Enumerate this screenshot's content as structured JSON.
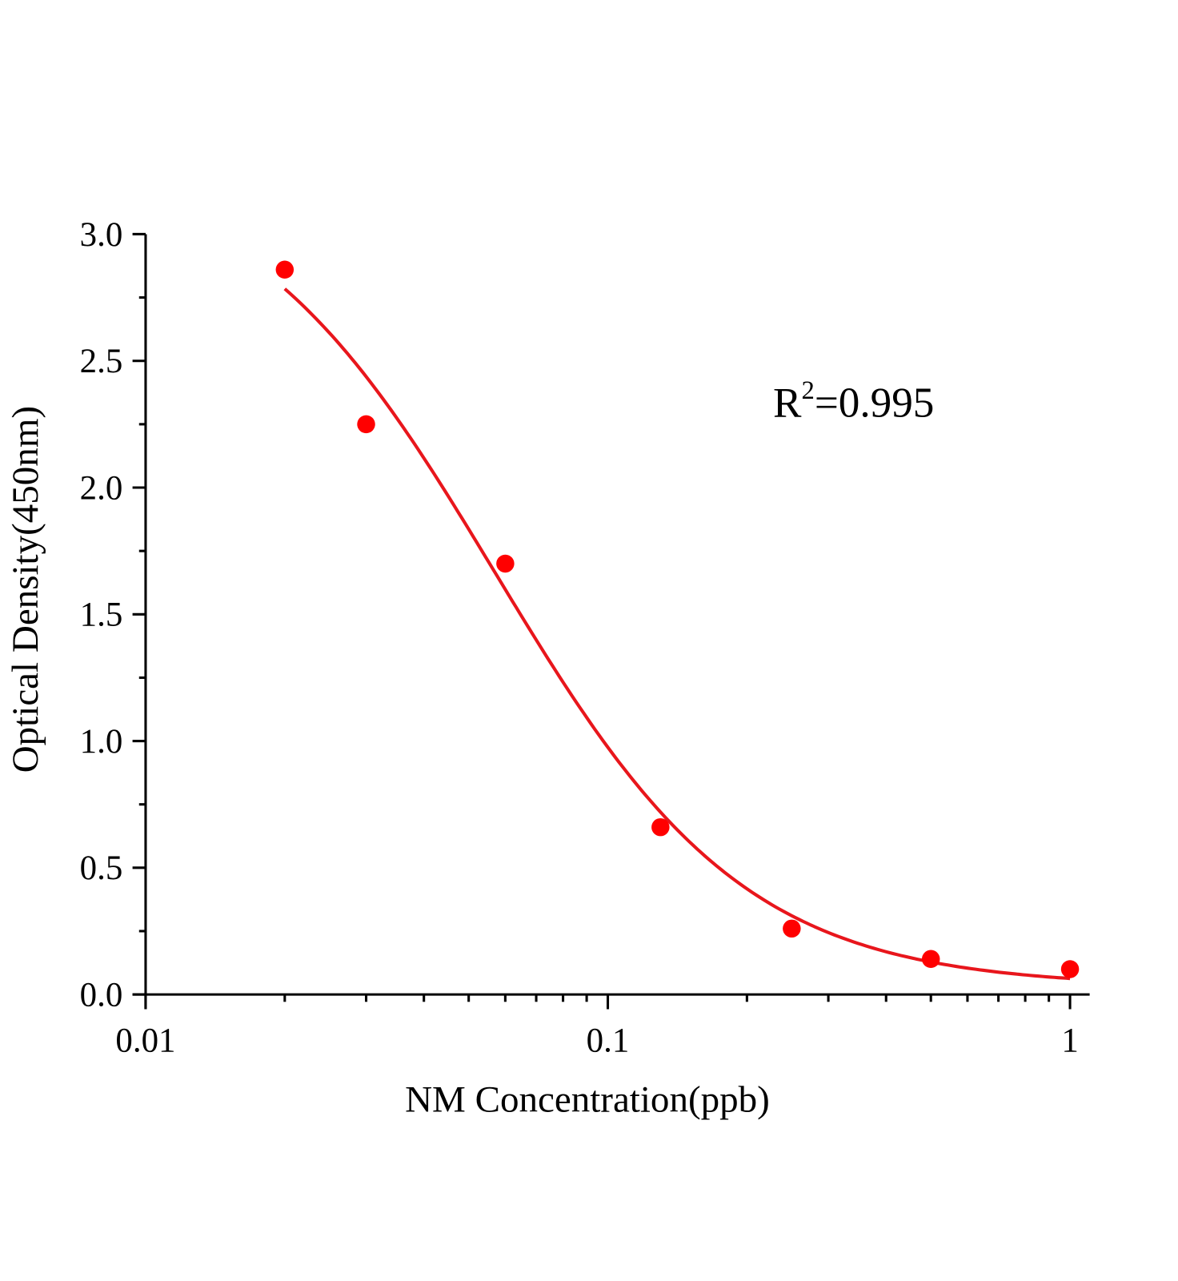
{
  "chart_data": {
    "type": "scatter",
    "xlabel": "NM Concentration(ppb)",
    "ylabel": "Optical Density(450nm)",
    "x_scale": "log",
    "xlim": [
      0.01,
      1.05
    ],
    "ylim": [
      0,
      3.0
    ],
    "x_ticks": [
      0.01,
      0.1,
      1
    ],
    "x_tick_labels": [
      "0.01",
      "0.1",
      "1"
    ],
    "y_ticks": [
      0,
      0.5,
      1.0,
      1.5,
      2.0,
      2.5,
      3.0
    ],
    "y_tick_labels": [
      "0.0",
      "0.5",
      "1.0",
      "1.5",
      "2.0",
      "2.5",
      "3.0"
    ],
    "grid": false,
    "legend": "none",
    "annotation": {
      "prefix": "R",
      "superscript": "2",
      "suffix": "=0.995"
    },
    "points": {
      "x": [
        0.02,
        0.03,
        0.06,
        0.13,
        0.25,
        0.5,
        1.0
      ],
      "y": [
        2.86,
        2.25,
        1.7,
        0.66,
        0.26,
        0.14,
        0.1
      ]
    },
    "fit": {
      "model": "4PL",
      "A": 3.3,
      "B": 1.6,
      "C": 0.057,
      "D": 0.03,
      "x_range": [
        0.02,
        1.0
      ]
    },
    "colors": {
      "points": "#ff0000",
      "curve": "#e8161c",
      "axes": "#000000"
    }
  }
}
